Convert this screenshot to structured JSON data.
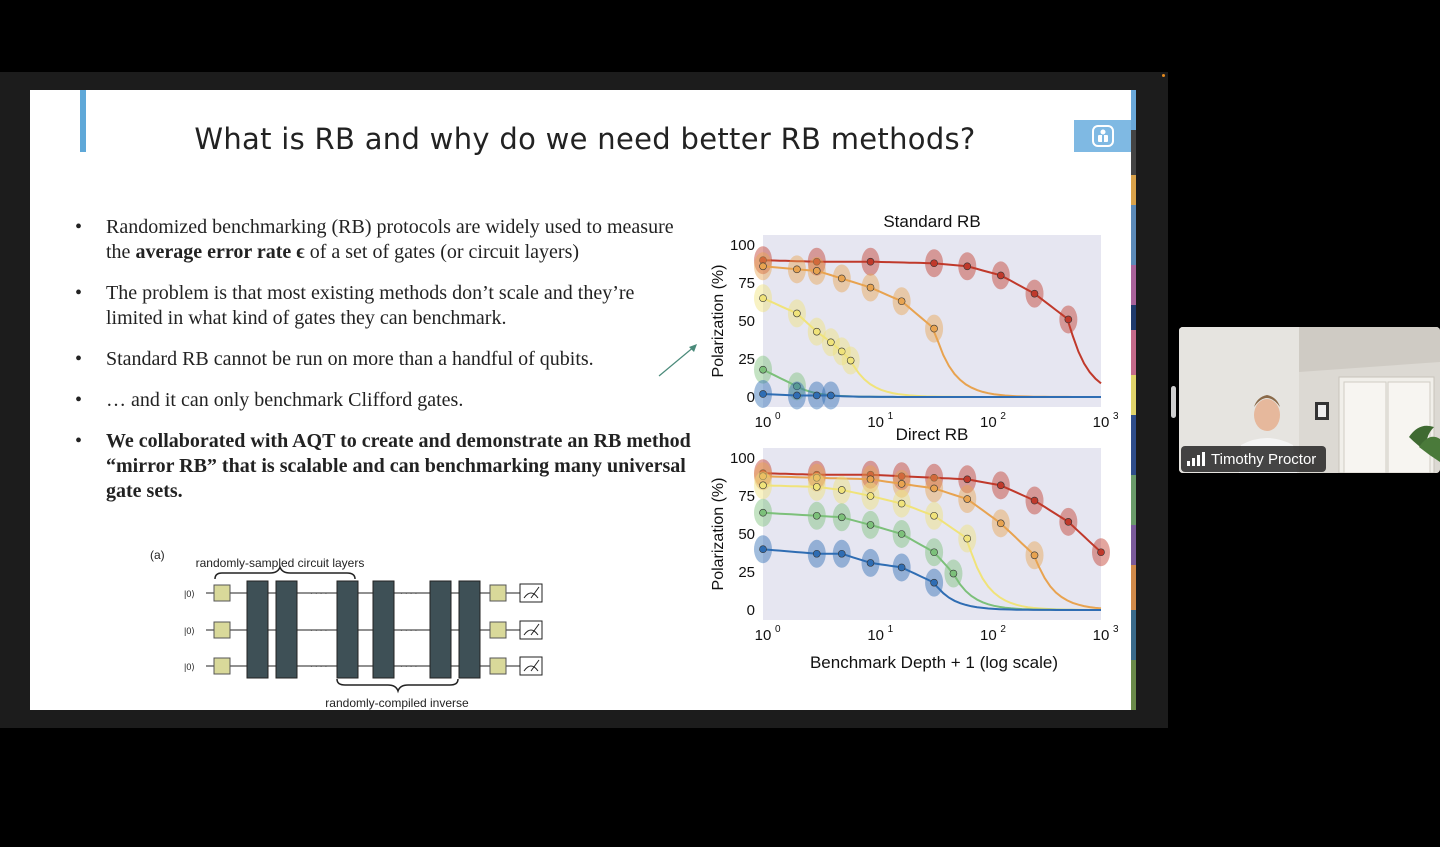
{
  "slide": {
    "title": "What is RB and why do we need better RB methods?",
    "bullets": {
      "b1_pre": "Randomized benchmarking (RB) protocols are widely used to measure the ",
      "b1_bold": "average error rate ϵ",
      "b1_post": " of a set of gates (or circuit layers)",
      "b2": "The problem is that most existing methods don’t scale and they’re limited in what kind of gates they can benchmark.",
      "b3": "Standard RB cannot be run on more than a handful of qubits.",
      "b4": "… and it can only benchmark Clifford gates.",
      "b5": "We collaborated with AQT to create and demonstrate an RB method “mirror RB” that is scalable and can benchmarking many universal gate sets."
    },
    "circuit": {
      "panel_label": "(a)",
      "top_label": "randomly-sampled circuit layers",
      "bottom_label": "randomly-compiled inverse",
      "qubit_label": "|0⟩",
      "dots": "· · · ·"
    }
  },
  "chart_data": [
    {
      "type": "line",
      "title": "Standard RB",
      "xlabel": "Benchmark Depth + 1 (log scale)",
      "ylabel": "Polarization (%)",
      "xscale": "log",
      "xlim": [
        1,
        1000
      ],
      "ylim": [
        0,
        100
      ],
      "yticks": [
        "0",
        "25",
        "50",
        "75",
        "100"
      ],
      "xticks": [
        {
          "base": "10",
          "exp": "0"
        },
        {
          "base": "10",
          "exp": "1"
        },
        {
          "base": "10",
          "exp": "2"
        },
        {
          "base": "10",
          "exp": "3"
        }
      ],
      "series": [
        {
          "color": "#c0392b",
          "x": [
            1,
            3,
            9,
            33,
            65,
            129,
            257,
            513
          ],
          "y": [
            90,
            89,
            89,
            88,
            86,
            80,
            68,
            51
          ]
        },
        {
          "color": "#e8a350",
          "x": [
            1,
            2,
            3,
            5,
            9,
            17,
            33
          ],
          "y": [
            86,
            84,
            83,
            78,
            72,
            63,
            45
          ]
        },
        {
          "color": "#f0e37a",
          "x": [
            1,
            2,
            3,
            4,
            5,
            6
          ],
          "y": [
            65,
            55,
            43,
            36,
            30,
            24
          ]
        },
        {
          "color": "#7cc07a",
          "x": [
            1,
            2
          ],
          "y": [
            18,
            7
          ]
        },
        {
          "color": "#2f6db3",
          "x": [
            1,
            2,
            3,
            4
          ],
          "y": [
            2,
            1,
            1,
            1
          ]
        }
      ]
    },
    {
      "type": "line",
      "title": "Direct RB",
      "xlabel": "Benchmark Depth + 1 (log scale)",
      "ylabel": "Polarization (%)",
      "xscale": "log",
      "xlim": [
        1,
        1000
      ],
      "ylim": [
        0,
        100
      ],
      "yticks": [
        "0",
        "25",
        "50",
        "75",
        "100"
      ],
      "xticks": [
        {
          "base": "10",
          "exp": "0"
        },
        {
          "base": "10",
          "exp": "1"
        },
        {
          "base": "10",
          "exp": "2"
        },
        {
          "base": "10",
          "exp": "3"
        }
      ],
      "series": [
        {
          "color": "#c0392b",
          "x": [
            1,
            3,
            9,
            17,
            33,
            65,
            129,
            257,
            513,
            1000
          ],
          "y": [
            90,
            89,
            89,
            88,
            87,
            86,
            82,
            72,
            58,
            38
          ]
        },
        {
          "color": "#e8a350",
          "x": [
            1,
            3,
            9,
            17,
            33,
            65,
            129,
            257
          ],
          "y": [
            88,
            87,
            86,
            83,
            80,
            73,
            57,
            36
          ]
        },
        {
          "color": "#f0e37a",
          "x": [
            1,
            3,
            5,
            9,
            17,
            33,
            65
          ],
          "y": [
            82,
            81,
            79,
            75,
            70,
            62,
            47
          ]
        },
        {
          "color": "#7cc07a",
          "x": [
            1,
            3,
            5,
            9,
            17,
            33,
            49
          ],
          "y": [
            64,
            62,
            61,
            56,
            50,
            38,
            24
          ]
        },
        {
          "color": "#2f6db3",
          "x": [
            1,
            3,
            5,
            9,
            17,
            33
          ],
          "y": [
            40,
            37,
            37,
            31,
            28,
            18
          ]
        }
      ]
    }
  ],
  "participant": {
    "name": "Timothy Proctor"
  },
  "colors": {
    "plot_bg": "#e6e6f1",
    "accent_bar": "#5fa8d8",
    "logo_bg": "#7fb9e3"
  }
}
